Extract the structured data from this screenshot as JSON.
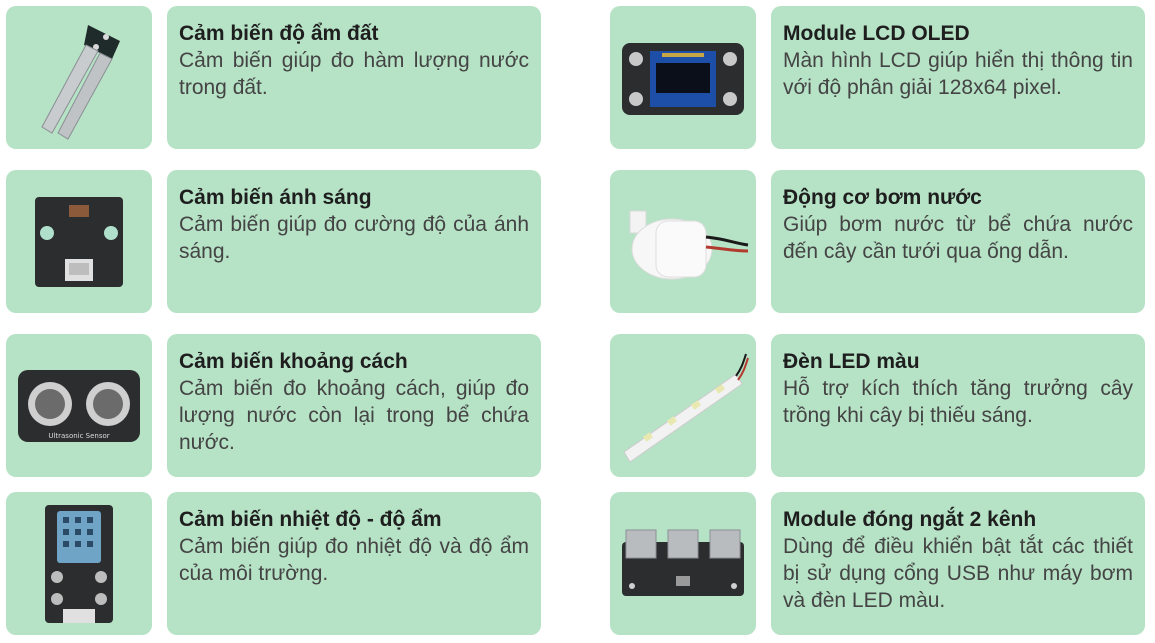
{
  "items": [
    {
      "title": "Cảm biến độ ẩm đất",
      "desc": "Cảm biến giúp đo hàm lượng nước trong đất.",
      "icon": "soil-moisture-sensor-icon"
    },
    {
      "title": "Module LCD OLED",
      "desc": "Màn hình LCD giúp hiển thị thông tin với độ phân giải 128x64 pixel.",
      "icon": "oled-display-icon"
    },
    {
      "title": "Cảm biến ánh sáng",
      "desc": "Cảm biến giúp đo cường độ của ánh sáng.",
      "icon": "light-sensor-icon"
    },
    {
      "title": "Động cơ bơm nước",
      "desc": "Giúp bơm nước từ bể chứa nước đến cây cần tưới qua ống dẫn.",
      "icon": "water-pump-icon"
    },
    {
      "title": "Cảm biến khoảng cách",
      "desc": "Cảm biến đo khoảng cách, giúp đo lượng nước còn lại trong bể chứa nước.",
      "icon": "ultrasonic-sensor-icon"
    },
    {
      "title": "Đèn LED màu",
      "desc": "Hỗ trợ kích thích tăng trưởng cây trồng khi cây bị thiếu sáng.",
      "icon": "led-strip-icon"
    },
    {
      "title": "Cảm biến nhiệt độ - độ ẩm",
      "desc": "Cảm biến giúp đo nhiệt độ và độ ẩm của môi trường.",
      "icon": "temperature-humidity-sensor-icon"
    },
    {
      "title": "Module đóng ngắt 2 kênh",
      "desc": "Dùng để điều khiển bật tắt các thiết bị sử dụng cổng USB như máy bơm và đèn LED màu.",
      "icon": "usb-switch-module-icon"
    }
  ],
  "colors": {
    "card": "#b6e2c6",
    "title": "#1e1e1e",
    "text": "#444444"
  },
  "sensor_labels": {
    "ultrasonic": "Ultrasonic Sensor"
  }
}
